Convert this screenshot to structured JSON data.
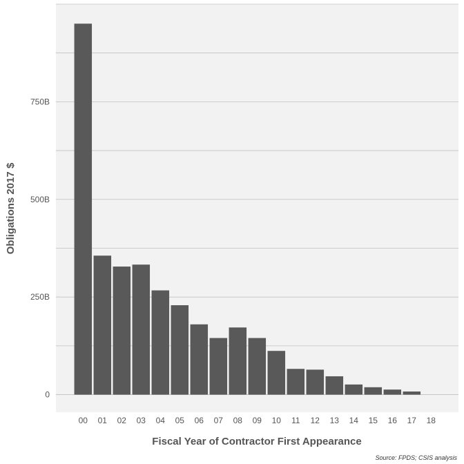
{
  "chart_data": {
    "type": "bar",
    "categories": [
      "00",
      "01",
      "02",
      "03",
      "04",
      "05",
      "06",
      "07",
      "08",
      "09",
      "10",
      "11",
      "12",
      "13",
      "14",
      "15",
      "16",
      "17",
      "18"
    ],
    "values": [
      950,
      356,
      328,
      333,
      267,
      229,
      180,
      145,
      172,
      145,
      112,
      66,
      64,
      47,
      26,
      19,
      13,
      8,
      0
    ],
    "xlabel": "Fiscal Year of Contractor First Appearance",
    "ylabel": "Obligations 2017 $",
    "ylim": [
      -45,
      1000
    ],
    "yticks": [
      0,
      250,
      500,
      750
    ],
    "ytick_labels": [
      "0",
      "250B",
      "500B",
      "750B"
    ],
    "caption": "Source: FPDS; CSIS analysis",
    "colors": {
      "bar": "#595959",
      "panel": "#f2f2f2",
      "grid": "#c0c0c0"
    },
    "grid": true,
    "legend": "none"
  }
}
